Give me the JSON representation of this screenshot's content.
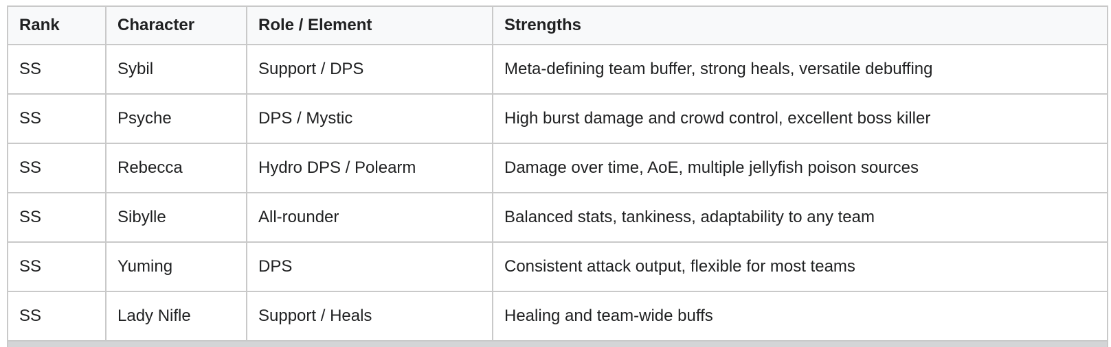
{
  "table": {
    "title": "character-tier-table",
    "headers": {
      "rank": "Rank",
      "character": "Character",
      "role": "Role / Element",
      "strengths": "Strengths"
    },
    "rows": [
      [
        "SS",
        "Sybil",
        "Support / DPS",
        "Meta-defining team buffer, strong heals, versatile debuffing"
      ],
      [
        "SS",
        "Psyche",
        "DPS / Mystic",
        "High burst damage and crowd control, excellent boss killer"
      ],
      [
        "SS",
        "Rebecca",
        "Hydro DPS / Polearm",
        "Damage over time, AoE, multiple jellyfish poison sources"
      ],
      [
        "SS",
        "Sibylle",
        "All-rounder",
        "Balanced stats, tankiness, adaptability to any team"
      ],
      [
        "SS",
        "Yuming",
        "DPS",
        "Consistent attack output, flexible for most teams"
      ],
      [
        "SS",
        "Lady Nifle",
        "Support / Heals",
        "Healing and team-wide buffs"
      ]
    ],
    "colors": {
      "header_bg": "#f8f9fa",
      "row_bg": "#ffffff",
      "border": "#c9c9c9",
      "text": "#202122",
      "next_row_strip": "#d4d5d7"
    }
  }
}
